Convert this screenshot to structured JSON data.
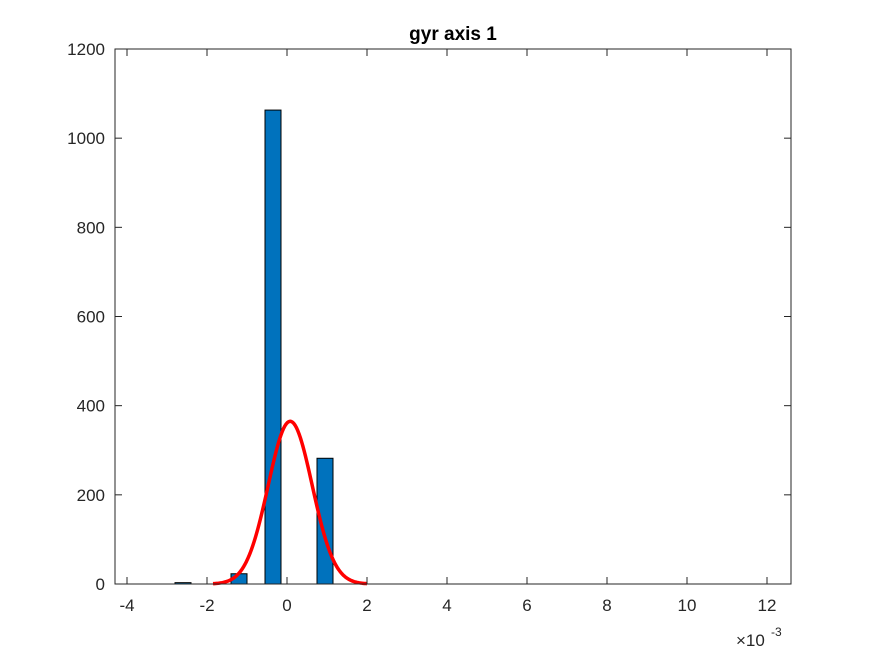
{
  "chart_data": {
    "type": "bar",
    "title": "gyr axis 1",
    "xlabel": "",
    "ylabel": "",
    "x_exponent_label": {
      "base": "×10",
      "exponent": "-3"
    },
    "xlim": [
      -4.3,
      12.6
    ],
    "ylim": [
      0,
      1200
    ],
    "xticks": [
      -4,
      -2,
      0,
      2,
      4,
      6,
      8,
      10,
      12
    ],
    "yticks": [
      0,
      200,
      400,
      600,
      800,
      1000,
      1200
    ],
    "xtick_labels": [
      "-4",
      "-2",
      "0",
      "2",
      "4",
      "6",
      "8",
      "10",
      "12"
    ],
    "ytick_labels": [
      "0",
      "200",
      "400",
      "600",
      "800",
      "1000",
      "1200"
    ],
    "bar_width": 0.4,
    "bars": [
      {
        "x": -3.9,
        "value": 0
      },
      {
        "x": -3.25,
        "value": 0
      },
      {
        "x": -2.6,
        "value": 3
      },
      {
        "x": -1.2,
        "value": 23
      },
      {
        "x": -0.35,
        "value": 1063
      },
      {
        "x": 0.95,
        "value": 282
      },
      {
        "x": 2.3,
        "value": 0
      },
      {
        "x": 3.6,
        "value": 0
      },
      {
        "x": 4.9,
        "value": 0
      },
      {
        "x": 6.2,
        "value": 0
      },
      {
        "x": 7.5,
        "value": 0
      },
      {
        "x": 8.8,
        "value": 0
      },
      {
        "x": 10.1,
        "value": 0
      },
      {
        "x": 11.4,
        "value": 0
      },
      {
        "x": 12.2,
        "value": 0
      }
    ],
    "fit_curve": {
      "type": "normal",
      "mean": 0.08,
      "sigma": 0.55,
      "peak": 365,
      "x_range": [
        -1.85,
        2.0
      ]
    },
    "colors": {
      "bar_fill": "#0072BD",
      "bar_edge": "#000000",
      "curve": "#FF0000",
      "axis": "#262626"
    },
    "grid": false
  }
}
